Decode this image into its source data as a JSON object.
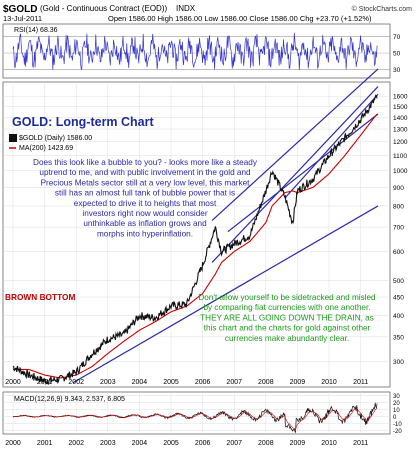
{
  "header": {
    "symbol": "$GOLD",
    "contract": "(Gold - Continuous Contract (EOD))",
    "exchange": "INDX",
    "watermark": "© StockCharts.com",
    "date": "13-Jul-2011",
    "ohlc": "Open 1586.00  High 1586.00  Low 1586.00  Close 1586.00  Chg +23.70 (+1.52%)"
  },
  "rsi_label": "RSI(14) 68.36",
  "price_labels": {
    "title": "GOLD: Long-term Chart",
    "legend_gold": "$GOLD (Daily) 1586.00",
    "legend_ma": "MA(200) 1423.69"
  },
  "annotations": {
    "note1_lines": [
      "Does this look like a bubble to you? - looks more like a steady",
      "uptrend to me, and with public involvement in the gold and",
      "Precious Metals sector still at a very low level, this market",
      "still has an almost full tank of bubble power that is",
      "expected to drive it to heights that most",
      "investors right now would consider",
      "unthinkable as inflation grows and",
      "morphs into hyperinflation."
    ],
    "note2_lines": [
      "Don't allow yourself to be sidetracked and misled",
      "by comparing fiat currencies with one another.",
      "THEY ARE ALL GOING DOWN THE DRAIN, as",
      "this chart and the charts for gold against other",
      "currencies make abundantly clear."
    ],
    "brown_bottom": "BROWN BOTTOM"
  },
  "macd_label": "MACD(12,26,9) 9.343, 2.537, 6.805",
  "colors": {
    "price": "#111111",
    "ma": "#cc0000",
    "trendline": "#2a2aa8",
    "rsi": "#3333cc",
    "title": "#1d2a9c",
    "note_blue": "#2a2aa8",
    "note_green": "#1d9a1d",
    "brown_bottom": "#c00000",
    "grid": "#dddddd"
  },
  "chart_data": [
    {
      "type": "line",
      "name": "RSI(14)",
      "y_ticks": [
        30,
        50,
        70
      ],
      "ylim": [
        20,
        85
      ],
      "last_value": 68.36
    },
    {
      "type": "line",
      "name": "$GOLD (Daily)",
      "scale": "log",
      "x": [
        2000,
        2000.5,
        2001,
        2001.5,
        2002,
        2002.5,
        2003,
        2003.5,
        2004,
        2004.5,
        2005,
        2005.5,
        2006,
        2006.4,
        2006.6,
        2007,
        2007.5,
        2008,
        2008.2,
        2008.6,
        2008.85,
        2009,
        2009.5,
        2010,
        2010.5,
        2011,
        2011.5
      ],
      "close": [
        290,
        275,
        265,
        268,
        280,
        315,
        345,
        355,
        400,
        395,
        425,
        430,
        550,
        700,
        600,
        630,
        665,
        880,
        1000,
        850,
        720,
        880,
        950,
        1100,
        1230,
        1380,
        1586
      ],
      "ma200": [
        285,
        285,
        275,
        270,
        275,
        290,
        315,
        340,
        365,
        385,
        410,
        425,
        460,
        520,
        560,
        600,
        640,
        720,
        800,
        870,
        880,
        870,
        900,
        980,
        1100,
        1250,
        1423.69
      ],
      "y_ticks": [
        300,
        350,
        400,
        450,
        500,
        600,
        700,
        800,
        900,
        1000,
        1100,
        1200,
        1300,
        1400,
        1500,
        1600
      ],
      "ylim": [
        255,
        1750
      ],
      "x_ticks": [
        "2000",
        "2001",
        "2002",
        "2003",
        "2004",
        "2005",
        "2006",
        "2007",
        "2008",
        "2009",
        "2010",
        "2011"
      ],
      "last_value": 1586.0
    },
    {
      "type": "line",
      "name": "MACD(12,26,9)",
      "y_ticks": [
        -20,
        -10,
        0,
        10,
        20,
        30
      ],
      "ylim": [
        -25,
        35
      ],
      "values": [
        9.343,
        2.537,
        6.805
      ]
    }
  ]
}
